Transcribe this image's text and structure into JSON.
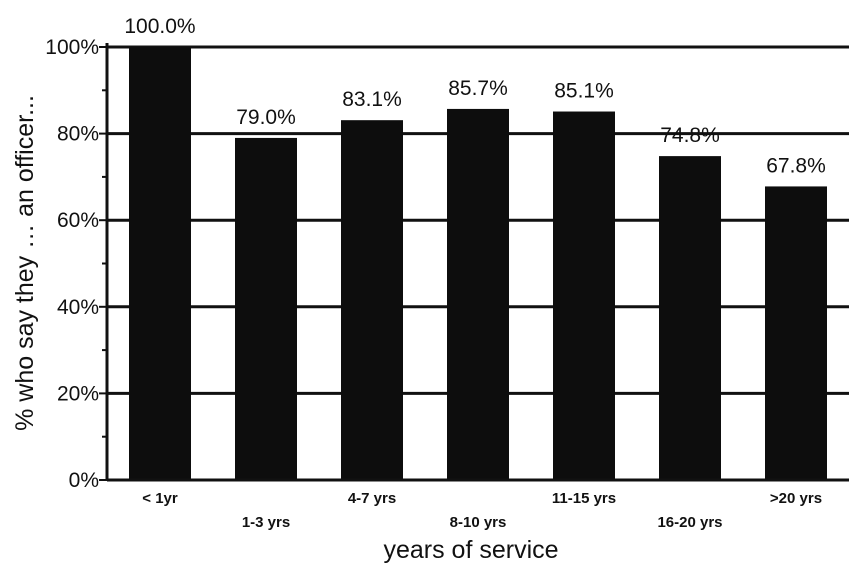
{
  "chart_data": {
    "type": "bar",
    "title": "",
    "xlabel": "years of service",
    "ylabel": "% who say they … an officer...",
    "categories": [
      "< 1yr",
      "1-3 yrs",
      "4-7 yrs",
      "8-10 yrs",
      "11-15 yrs",
      "16-20 yrs",
      ">20 yrs"
    ],
    "values": [
      100.0,
      79.0,
      83.1,
      85.7,
      85.1,
      74.8,
      67.8
    ],
    "data_labels": [
      "100.0%",
      "79.0%",
      "83.1%",
      "85.7%",
      "85.1%",
      "74.8%",
      "67.8%"
    ],
    "yticks": [
      "0%",
      "20%",
      "40%",
      "60%",
      "80%",
      "100%"
    ],
    "ylim": [
      0,
      100
    ],
    "grid": true,
    "legend": "none",
    "colors": {
      "bar": "#0d0d0d",
      "grid": "#111111",
      "text": "#111111"
    }
  }
}
